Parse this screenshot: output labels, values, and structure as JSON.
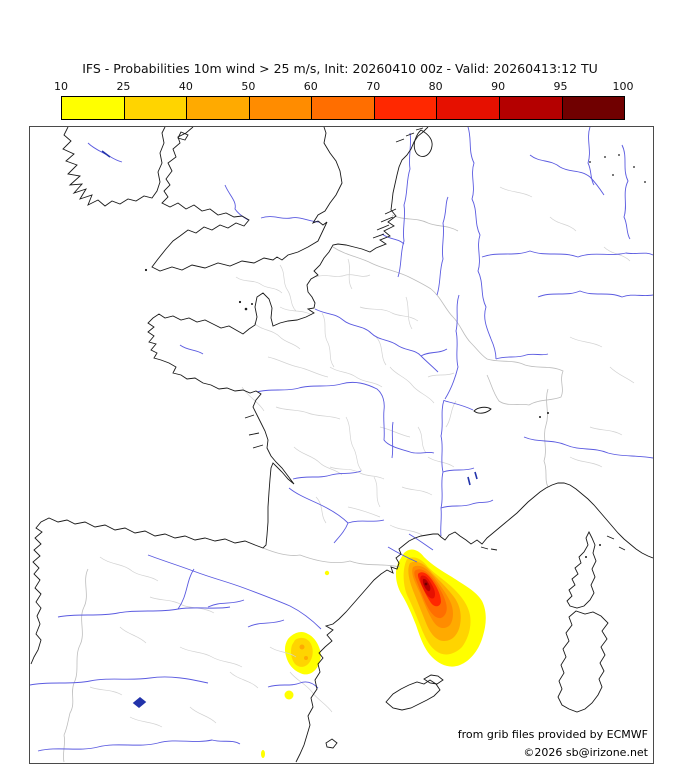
{
  "title": "IFS - Probabilities 10m wind > 25 m/s, Init: 20260410 00z - Valid: 20260413:12 TU",
  "colorbar": {
    "tick_labels": [
      "10",
      "25",
      "40",
      "50",
      "60",
      "70",
      "80",
      "90",
      "95",
      "100"
    ],
    "levels": [
      {
        "value": 10,
        "color": "#ffff00"
      },
      {
        "value": 25,
        "color": "#ffd400"
      },
      {
        "value": 40,
        "color": "#ffaa00"
      },
      {
        "value": 50,
        "color": "#ff8c00"
      },
      {
        "value": 60,
        "color": "#ff6e00"
      },
      {
        "value": 70,
        "color": "#ff2800"
      },
      {
        "value": 80,
        "color": "#e61000"
      },
      {
        "value": 90,
        "color": "#b40000"
      },
      {
        "value": 95,
        "color": "#700000"
      }
    ]
  },
  "map": {
    "attribution_line1": "from grib files provided by ECMWF",
    "attribution_line2": "©2026 sb@irizone.net",
    "colors": {
      "coastline": "#1a1a1a",
      "river": "#5a5ae0",
      "lake": "#2233aa",
      "admin_border": "#d2d2d2",
      "country_border": "#bdbdbd",
      "sea": "#ffffff",
      "land": "#ffffff"
    },
    "contours": {
      "quantity": "probability (%) that 10m wind exceeds 25 m/s",
      "cells": [
        {
          "name": "main-cell-offshore-northeast-spain",
          "levels_shown": [
            10,
            25,
            40,
            50,
            60,
            70,
            80,
            90,
            95
          ]
        },
        {
          "name": "secondary-cell-valencia-coast",
          "levels_shown": [
            10,
            25,
            40
          ]
        },
        {
          "name": "minor-speck-cells",
          "levels_shown": [
            10
          ]
        }
      ]
    }
  }
}
